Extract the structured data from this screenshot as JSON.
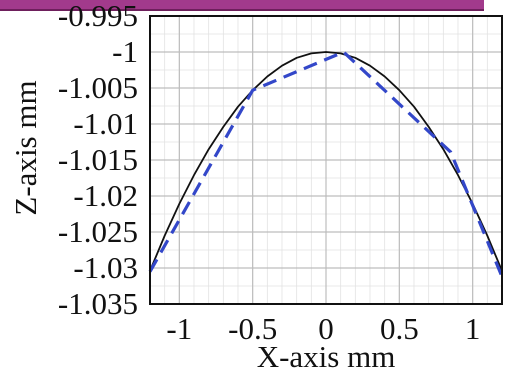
{
  "chart_data": {
    "type": "line",
    "xlabel": "X-axis mm",
    "ylabel": "Z-axis mm",
    "xlim": [
      -1.2,
      1.2
    ],
    "ylim": [
      -1.035,
      -0.995
    ],
    "x_ticks": [
      -1,
      -0.5,
      0,
      0.5,
      1
    ],
    "x_tick_labels": [
      "-1",
      "-0.5",
      "0",
      "0.5",
      "1"
    ],
    "y_ticks": [
      -0.995,
      -1,
      -1.005,
      -1.01,
      -1.015,
      -1.02,
      -1.025,
      -1.03,
      -1.035
    ],
    "y_tick_labels": [
      "-0.995",
      "-1",
      "-1.005",
      "-1.01",
      "-1.015",
      "-1.02",
      "-1.025",
      "-1.03",
      "-1.035"
    ],
    "grid": true,
    "series": [
      {
        "style": "solid",
        "color": "#111111",
        "x": [
          -1.2,
          -1.1,
          -1.0,
          -0.9,
          -0.8,
          -0.7,
          -0.6,
          -0.5,
          -0.4,
          -0.3,
          -0.2,
          -0.1,
          0.0,
          0.1,
          0.2,
          0.3,
          0.4,
          0.5,
          0.6,
          0.7,
          0.8,
          0.9,
          1.0,
          1.1,
          1.2
        ],
        "y": [
          -1.0304,
          -1.0255,
          -1.0211,
          -1.0171,
          -1.0135,
          -1.0104,
          -1.0076,
          -1.0053,
          -1.0034,
          -1.0019,
          -1.0008,
          -1.0002,
          -1.0,
          -1.0002,
          -1.0008,
          -1.0019,
          -1.0034,
          -1.0053,
          -1.0076,
          -1.0104,
          -1.0135,
          -1.0171,
          -1.0211,
          -1.0255,
          -1.0304
        ]
      },
      {
        "style": "dashed",
        "color": "#3347c9",
        "x": [
          -1.2,
          -0.5,
          0.12,
          0.85,
          1.2
        ],
        "y": [
          -1.0305,
          -1.0053,
          -1.0,
          -1.0139,
          -1.0312
        ]
      }
    ]
  }
}
